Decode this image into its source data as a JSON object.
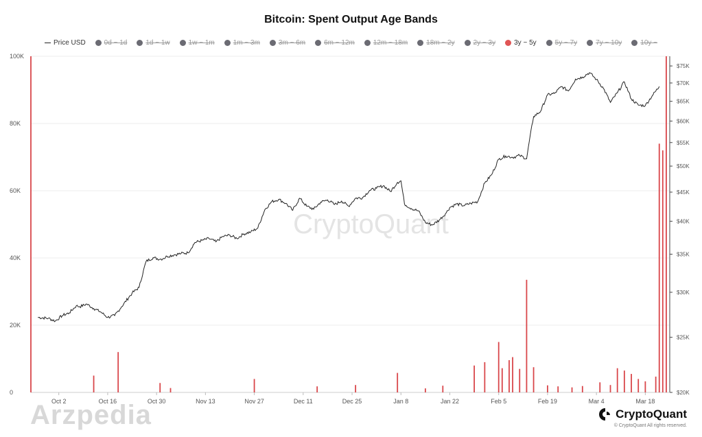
{
  "chart_data": {
    "type": "line",
    "title": "Bitcoin: Spent Output Age Bands",
    "watermark": "CryptoQuant",
    "legend": [
      {
        "label": "Price USD",
        "kind": "line",
        "color": "#222222",
        "active": true
      },
      {
        "label": "0d ~ 1d",
        "kind": "dot",
        "color": "#6b6b73",
        "active": false
      },
      {
        "label": "1d ~ 1w",
        "kind": "dot",
        "color": "#6b6b73",
        "active": false
      },
      {
        "label": "1w ~ 1m",
        "kind": "dot",
        "color": "#6b6b73",
        "active": false
      },
      {
        "label": "1m ~ 3m",
        "kind": "dot",
        "color": "#6b6b73",
        "active": false
      },
      {
        "label": "3m ~ 6m",
        "kind": "dot",
        "color": "#6b6b73",
        "active": false
      },
      {
        "label": "6m ~ 12m",
        "kind": "dot",
        "color": "#6b6b73",
        "active": false
      },
      {
        "label": "12m ~ 18m",
        "kind": "dot",
        "color": "#6b6b73",
        "active": false
      },
      {
        "label": "18m ~ 2y",
        "kind": "dot",
        "color": "#6b6b73",
        "active": false
      },
      {
        "label": "2y ~ 3y",
        "kind": "dot",
        "color": "#6b6b73",
        "active": false
      },
      {
        "label": "3y ~ 5y",
        "kind": "dot",
        "color": "#e05555",
        "active": true
      },
      {
        "label": "5y ~ 7y",
        "kind": "dot",
        "color": "#6b6b73",
        "active": false
      },
      {
        "label": "7y ~ 10y",
        "kind": "dot",
        "color": "#6b6b73",
        "active": false
      },
      {
        "label": "10y ~",
        "kind": "dot",
        "color": "#6b6b73",
        "active": false
      }
    ],
    "x_ticks": [
      "Oct 2",
      "Oct 16",
      "Oct 30",
      "Nov 13",
      "Nov 27",
      "Dec 11",
      "Dec 25",
      "Jan 8",
      "Jan 22",
      "Feb 5",
      "Feb 19",
      "Mar 4",
      "Mar 18"
    ],
    "x_range_days": [
      -8,
      175
    ],
    "left_axis": {
      "ticks": [
        0,
        20000,
        40000,
        60000,
        80000,
        100000
      ],
      "tick_labels": [
        "0",
        "20K",
        "40K",
        "60K",
        "80K",
        "100K"
      ],
      "range": [
        0,
        100000
      ]
    },
    "right_axis": {
      "scale": "log",
      "range": [
        20000,
        78000
      ],
      "ticks": [
        20000,
        25000,
        30000,
        35000,
        40000,
        45000,
        50000,
        55000,
        60000,
        65000,
        70000,
        75000
      ],
      "tick_labels": [
        "$20K",
        "$25K",
        "$30K",
        "$35K",
        "$40K",
        "$45K",
        "$50K",
        "$55K",
        "$60K",
        "$65K",
        "$70K",
        "$75K"
      ]
    },
    "grid": "horizontal",
    "series": [
      {
        "name": "Price USD",
        "axis": "right",
        "color": "#222222",
        "x_days": [
          -6,
          -3,
          -1,
          1,
          3,
          5,
          6,
          8,
          10,
          12,
          14,
          16,
          18,
          21,
          23,
          25,
          27,
          29,
          30,
          31,
          33,
          35,
          37,
          39,
          41,
          43,
          45,
          47,
          49,
          51,
          53,
          55,
          57,
          59,
          61,
          63,
          65,
          67,
          69,
          71,
          73,
          75,
          77,
          79,
          81,
          83,
          85,
          87,
          89,
          91,
          93,
          95,
          97,
          98,
          99,
          101,
          103,
          105,
          107,
          109,
          111,
          112,
          114,
          116,
          118,
          120,
          122,
          124,
          126,
          128,
          130,
          132,
          134,
          136,
          138,
          140,
          142,
          144,
          146,
          148,
          150,
          152,
          154,
          156,
          158,
          160,
          162,
          164,
          166,
          168,
          170,
          172
        ],
        "values": [
          27100,
          27000,
          26700,
          27300,
          27600,
          28400,
          28300,
          28600,
          28100,
          27700,
          27100,
          27300,
          28300,
          29900,
          30600,
          34000,
          34500,
          34300,
          34400,
          34700,
          34900,
          35100,
          35200,
          36700,
          37000,
          37300,
          36800,
          37600,
          37800,
          37300,
          38000,
          38300,
          38900,
          41900,
          43300,
          43700,
          43000,
          41800,
          43900,
          42500,
          42000,
          43200,
          43600,
          42800,
          43400,
          42500,
          43900,
          44000,
          45300,
          45700,
          46200,
          45100,
          46800,
          47100,
          42900,
          42100,
          41700,
          39800,
          39400,
          40200,
          41400,
          42300,
          42900,
          42600,
          43000,
          43300,
          46700,
          48300,
          51400,
          52100,
          51800,
          52200,
          51500,
          61100,
          62400,
          66700,
          67100,
          69000,
          67800,
          71100,
          71700,
          73000,
          71000,
          68500,
          64700,
          67300,
          70300,
          65600,
          64000,
          63900,
          66500,
          69000
        ]
      },
      {
        "name": "3y ~ 5y",
        "axis": "left",
        "type": "bar",
        "color": "#d9464a",
        "x_days": [
          -8,
          10,
          17,
          29,
          32,
          56,
          74,
          85,
          97,
          105,
          110,
          119,
          122,
          126,
          127,
          129,
          130,
          132,
          134,
          136,
          140,
          143,
          147,
          150,
          155,
          158,
          160,
          162,
          164,
          166,
          168,
          171,
          172,
          173,
          174
        ],
        "values": [
          100000,
          5000,
          12000,
          2800,
          1300,
          4000,
          1800,
          2200,
          5800,
          1200,
          2000,
          8000,
          9000,
          15000,
          7200,
          9600,
          10500,
          7000,
          33500,
          7500,
          2100,
          1800,
          1500,
          1900,
          3000,
          2200,
          7200,
          6500,
          5500,
          4000,
          3300,
          4700,
          74000,
          72000,
          100000
        ]
      }
    ]
  },
  "footer": {
    "watermark_left": "Arzpedia",
    "brand": "CryptoQuant",
    "rights": "© CryptoQuant All rights reserved."
  }
}
